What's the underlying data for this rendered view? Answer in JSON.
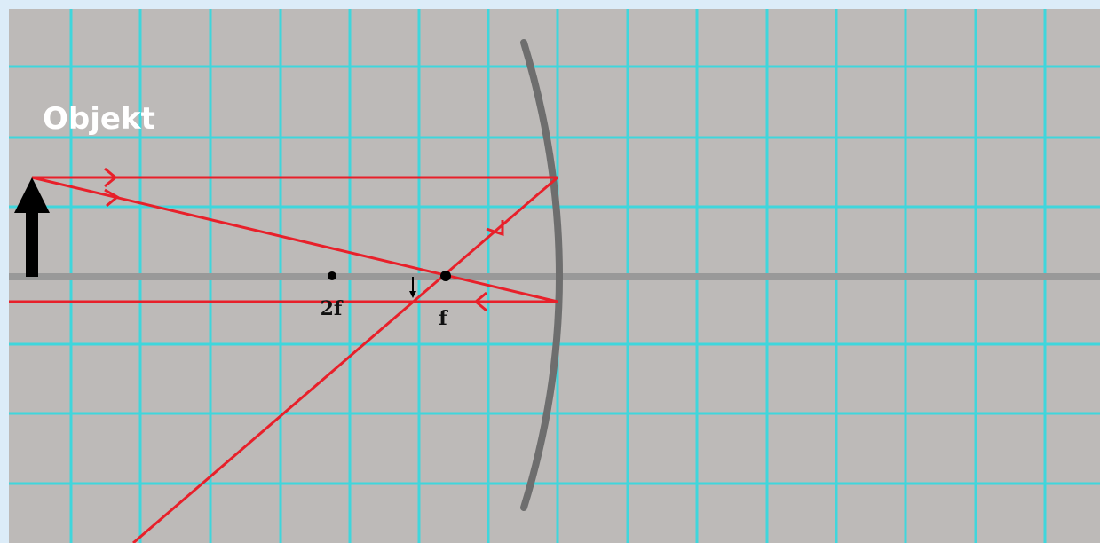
{
  "labels": {
    "object": "Objekt",
    "two_f": "2f",
    "f": "f"
  }
}
